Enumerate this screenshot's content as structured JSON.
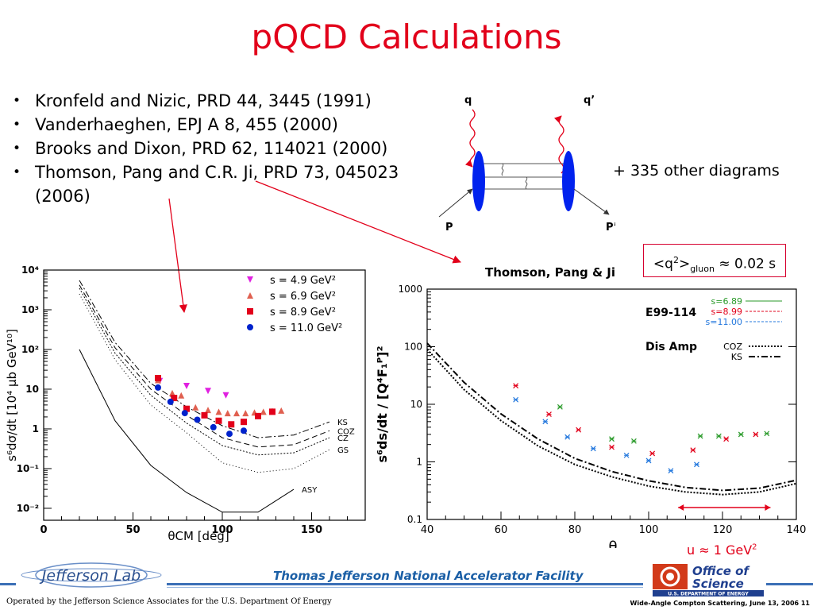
{
  "title": "pQCD Calculations",
  "references": [
    "Kronfeld and Nizic, PRD 44, 3445 (1991)",
    "Vanderhaeghen, EPJ A 8, 455 (2000)",
    "Brooks and Dixon, PRD 62, 114021 (2000)",
    "Thomson, Pang and C.R. Ji, PRD 73, 045023 (2006)"
  ],
  "diagram": {
    "q": "q",
    "q_prime": "q’",
    "p": "P",
    "p_prime": "P’",
    "other": "+ 335 other diagrams"
  },
  "annotation": {
    "q2": "<q",
    "q2_sup": "2",
    "q2_close": ">",
    "gluon": "gluon",
    "value": "≈ 0.02 s"
  },
  "u_label": {
    "text": "u ≈ 1 GeV",
    "sup": "2"
  },
  "footer": {
    "lab": "Thomas Jefferson National Accelerator Facility",
    "operated": "Operated by the Jefferson Science Associates for the U.S. Department Of Energy",
    "conference": "Wide-Angle Compton Scattering, June 13, 2006 11",
    "jlab_logo": "Jefferson Lab",
    "doe_logo_1": "Office of",
    "doe_logo_2": "Science",
    "doe_logo_3": "U.S. DEPARTMENT OF ENERGY"
  },
  "colors": {
    "accent": "#e2001a",
    "blue": "#0022cc",
    "green": "#2a9a2a",
    "magenta": "#e020e0",
    "salmon": "#e06050"
  },
  "chart_data": [
    {
      "type": "scatter",
      "xlabel": "θCM [deg]",
      "ylabel": "s⁶dσ/dt [10⁴ μb GeV¹⁰]",
      "xlim": [
        0,
        180
      ],
      "ylim": [
        0.005,
        10000
      ],
      "yscale": "log",
      "xticks": [
        0,
        50,
        100,
        150
      ],
      "yticks": [
        "10⁻²",
        "10⁻¹",
        "1",
        "10",
        "10²",
        "10³",
        "10⁴"
      ],
      "legend": [
        "s = 4.9 GeV²",
        "s = 6.9 GeV²",
        "s = 8.9 GeV²",
        "s = 11.0 GeV²"
      ],
      "series": [
        {
          "name": "s = 4.9 GeV²",
          "color": "#e020e0",
          "marker": "tri-down",
          "x": [
            65,
            80,
            92,
            102
          ],
          "y": [
            16,
            12,
            9,
            7
          ]
        },
        {
          "name": "s = 6.9 GeV²",
          "color": "#e06050",
          "marker": "tri-up",
          "x": [
            64,
            72,
            77,
            85,
            92,
            98,
            103,
            108,
            113,
            118,
            123,
            128,
            133
          ],
          "y": [
            17,
            8,
            7,
            3.5,
            3,
            2.7,
            2.5,
            2.5,
            2.5,
            2.6,
            2.7,
            2.8,
            2.9
          ]
        },
        {
          "name": "s = 8.9 GeV²",
          "color": "#e2001a",
          "marker": "square",
          "x": [
            64,
            73,
            80,
            90,
            98,
            105,
            112,
            120,
            128
          ],
          "y": [
            19,
            6,
            3.2,
            2.2,
            1.6,
            1.3,
            1.5,
            2.1,
            2.7
          ]
        },
        {
          "name": "s = 11.0 GeV²",
          "color": "#0022cc",
          "marker": "circle",
          "x": [
            64,
            71,
            79,
            86,
            95,
            104,
            112
          ],
          "y": [
            11,
            4.8,
            2.5,
            1.7,
            1.1,
            0.75,
            0.9
          ]
        }
      ],
      "curves": [
        {
          "name": "KS",
          "style": "dashdot",
          "x": [
            20,
            40,
            60,
            80,
            100,
            120,
            140,
            160
          ],
          "y": [
            5500,
            150,
            14,
            3.6,
            1.2,
            0.6,
            0.7,
            1.5
          ]
        },
        {
          "name": "COZ",
          "style": "dashed",
          "x": [
            20,
            40,
            60,
            80,
            100,
            120,
            140,
            160
          ],
          "y": [
            4200,
            110,
            10,
            2.2,
            0.6,
            0.35,
            0.4,
            0.9
          ]
        },
        {
          "name": "CZ",
          "style": "dotted",
          "x": [
            20,
            40,
            60,
            80,
            100,
            120,
            140,
            160
          ],
          "y": [
            3500,
            80,
            7,
            1.4,
            0.38,
            0.22,
            0.25,
            0.6
          ]
        },
        {
          "name": "GS",
          "style": "dotted2",
          "x": [
            20,
            40,
            60,
            80,
            100,
            120,
            140,
            160
          ],
          "y": [
            2500,
            55,
            4,
            0.8,
            0.14,
            0.08,
            0.1,
            0.3
          ]
        },
        {
          "name": "ASY",
          "style": "solid",
          "x": [
            20,
            40,
            60,
            80,
            100,
            120,
            140
          ],
          "y": [
            100,
            1.6,
            0.12,
            0.025,
            0.008,
            0.008,
            0.03
          ]
        }
      ]
    },
    {
      "type": "scatter",
      "title": "Thomson, Pang & Ji",
      "xlabel": "θ",
      "ylabel": "s⁶ds/dt / [Q⁴F₁ᴾ]²",
      "xlim": [
        40,
        140
      ],
      "ylim": [
        0.1,
        1000
      ],
      "yscale": "log",
      "xticks": [
        40,
        60,
        80,
        100,
        120,
        140
      ],
      "yticks": [
        "0.1",
        "1",
        "10",
        "100",
        "1000"
      ],
      "legend_groups": {
        "data": "E99-114",
        "calc": "Dis Amp"
      },
      "series": [
        {
          "name": "s=6.89",
          "color": "#2a9a2a",
          "x": [
            76,
            90,
            96,
            114,
            119,
            125,
            132
          ],
          "y": [
            9,
            2.5,
            2.3,
            2.8,
            2.8,
            3.0,
            3.1
          ]
        },
        {
          "name": "s=8.99",
          "color": "#e2001a",
          "x": [
            64,
            73,
            81,
            90,
            101,
            112,
            121,
            129
          ],
          "y": [
            21,
            6.7,
            3.6,
            1.8,
            1.4,
            1.6,
            2.5,
            3.0
          ]
        },
        {
          "name": "s=11.00",
          "color": "#2277dd",
          "x": [
            64,
            72,
            78,
            85,
            94,
            100,
            106,
            113
          ],
          "y": [
            12,
            5,
            2.7,
            1.7,
            1.3,
            1.05,
            0.7,
            0.9
          ]
        }
      ],
      "curves": [
        {
          "name": "COZ",
          "style": "dotted",
          "x": [
            40,
            50,
            60,
            70,
            80,
            90,
            100,
            110,
            120,
            130,
            140
          ],
          "y": [
            90,
            18,
            5.2,
            1.9,
            0.9,
            0.55,
            0.38,
            0.3,
            0.27,
            0.3,
            0.42
          ]
        },
        {
          "name": "KS",
          "style": "dashdot",
          "x": [
            40,
            50,
            60,
            70,
            80,
            90,
            100,
            110,
            120,
            130,
            140
          ],
          "y": [
            115,
            24,
            6.8,
            2.5,
            1.15,
            0.68,
            0.47,
            0.36,
            0.32,
            0.35,
            0.48
          ]
        }
      ],
      "u_range": [
        108,
        133
      ]
    }
  ]
}
